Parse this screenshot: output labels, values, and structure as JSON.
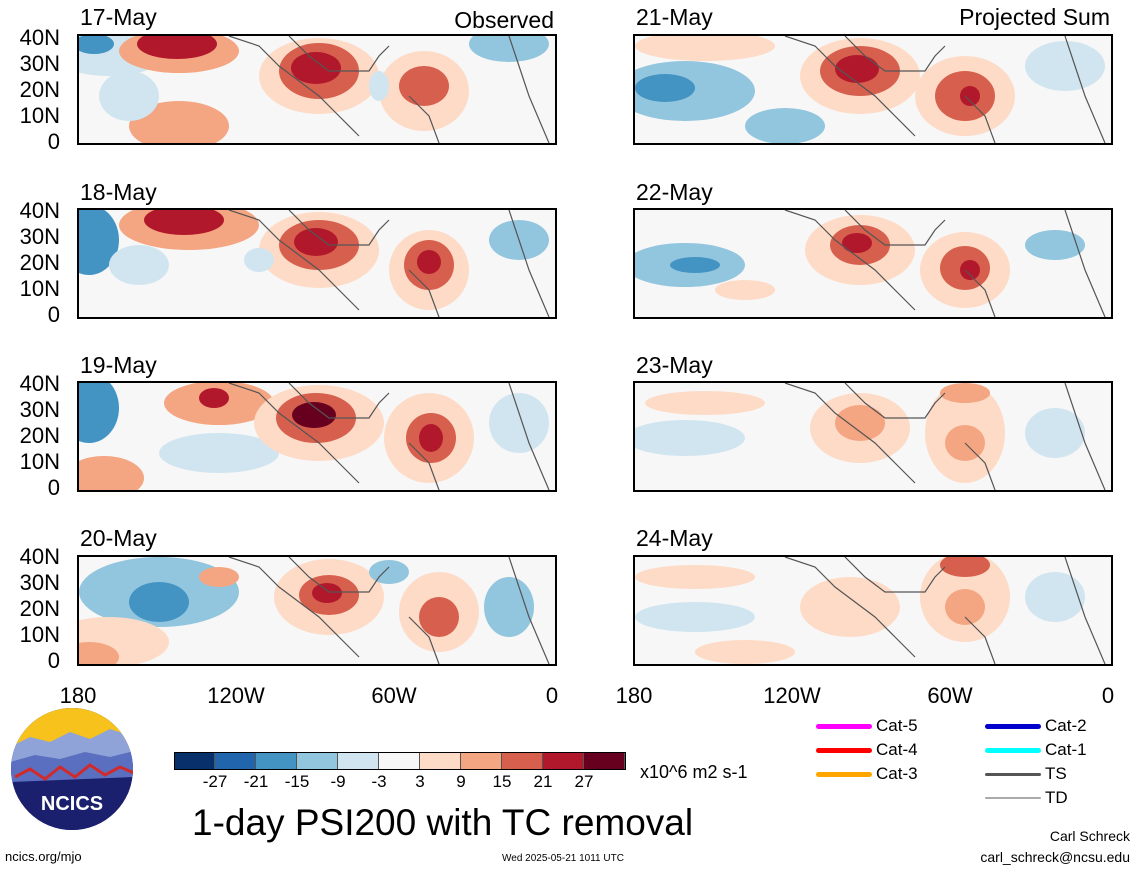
{
  "header": {
    "left_label": "Observed",
    "right_label": "Projected Sum"
  },
  "panels": {
    "left": [
      {
        "date": "17-May"
      },
      {
        "date": "18-May"
      },
      {
        "date": "19-May"
      },
      {
        "date": "20-May"
      }
    ],
    "right": [
      {
        "date": "21-May"
      },
      {
        "date": "22-May"
      },
      {
        "date": "23-May"
      },
      {
        "date": "24-May"
      }
    ]
  },
  "axes": {
    "lat_labels": [
      "40N",
      "30N",
      "20N",
      "10N",
      "0"
    ],
    "lon_labels": [
      "180",
      "120W",
      "60W",
      "0"
    ]
  },
  "colorbar": {
    "labels": [
      "-27",
      "-21",
      "-15",
      "-9",
      "-3",
      "3",
      "9",
      "15",
      "21",
      "27"
    ],
    "colors": [
      "#08306b",
      "#2166ac",
      "#4393c3",
      "#92c5de",
      "#d1e5f0",
      "#f7f7f7",
      "#fddbc7",
      "#f4a582",
      "#d6604d",
      "#b2182b",
      "#67001f"
    ],
    "units": "x10^6 m2 s-1"
  },
  "title": "1-day PSI200 with TC removal",
  "legend": {
    "items": [
      {
        "label": "Cat-5",
        "color": "#ff00ff"
      },
      {
        "label": "Cat-4",
        "color": "#ff0000"
      },
      {
        "label": "Cat-3",
        "color": "#ffa500"
      },
      {
        "label": "Cat-2",
        "color": "#0000cd"
      },
      {
        "label": "Cat-1",
        "color": "#00ffff"
      },
      {
        "label": "TS",
        "color": "#555555"
      },
      {
        "label": "TD",
        "color": "#aaaaaa"
      }
    ]
  },
  "logo": {
    "text": "NCICS"
  },
  "footer": {
    "url": "ncics.org/mjo",
    "timestamp": "Wed 2025-05-21 1011 UTC",
    "author": "Carl Schreck",
    "email": "carl_schreck@ncsu.edu"
  }
}
